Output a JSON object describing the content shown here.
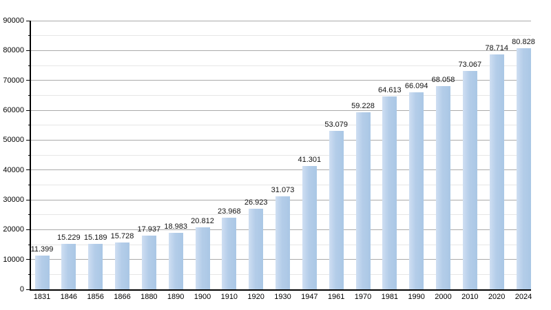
{
  "chart_data": {
    "type": "bar",
    "title": "",
    "xlabel": "",
    "ylabel": "",
    "categories": [
      "1831",
      "1846",
      "1856",
      "1866",
      "1880",
      "1890",
      "1900",
      "1910",
      "1920",
      "1930",
      "1947",
      "1961",
      "1970",
      "1981",
      "1990",
      "2000",
      "2010",
      "2020",
      "2024"
    ],
    "values": [
      11399,
      15229,
      15189,
      15728,
      17937,
      18983,
      20812,
      23968,
      26923,
      31073,
      41301,
      53079,
      59228,
      64613,
      66094,
      68058,
      73067,
      78714,
      80828
    ],
    "value_labels": [
      "11.399",
      "15.229",
      "15.189",
      "15.728",
      "17.937",
      "18.983",
      "20.812",
      "23.968",
      "26.923",
      "31.073",
      "41.301",
      "53.079",
      "59.228",
      "64.613",
      "66.094",
      "68.058",
      "73.067",
      "78.714",
      "80.828"
    ],
    "ylim": [
      0,
      90000
    ],
    "y_major_step": 10000,
    "y_minor_step": 5000,
    "y_tick_labels": [
      "0",
      "10000",
      "20000",
      "30000",
      "40000",
      "50000",
      "60000",
      "70000",
      "80000",
      "90000"
    ],
    "grid": true,
    "legend_position": "none",
    "colors": {
      "background": "#ffffff",
      "bar_gradient_left": "#cfdff2",
      "bar_gradient_mid": "#b4cde9",
      "bar_gradient_right": "#aac7e5",
      "major_gridline": "#aaaaaa",
      "minor_gridline": "#e6e6e6",
      "axis": "#000000",
      "text": "#000000"
    }
  }
}
